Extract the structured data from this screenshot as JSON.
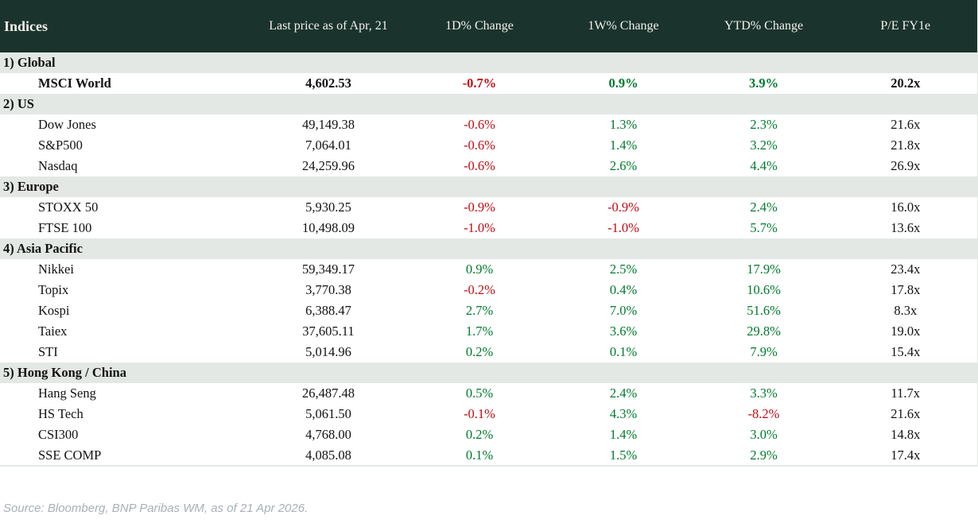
{
  "colors": {
    "header_bg": "#1a332d",
    "header_text": "#f4f1e9",
    "section_bg": "#e3e8e4",
    "positive": "#007a2e",
    "negative": "#c00c12",
    "text": "#121212",
    "source_text": "#a7b1b4"
  },
  "table": {
    "columns": [
      "Indices",
      "Last price as of Apr, 21",
      "1D% Change",
      "1W% Change",
      "YTD% Change",
      "P/E FY1e"
    ],
    "sections": [
      {
        "label": "1) Global",
        "rows": [
          {
            "name": "MSCI World",
            "price": "4,602.53",
            "d1": "-0.7%",
            "w1": "0.9%",
            "ytd": "3.9%",
            "pe": "20.2x",
            "bold": true
          }
        ]
      },
      {
        "label": "2) US",
        "rows": [
          {
            "name": "Dow Jones",
            "price": "49,149.38",
            "d1": "-0.6%",
            "w1": "1.3%",
            "ytd": "2.3%",
            "pe": "21.6x",
            "bold": false
          },
          {
            "name": "S&P500",
            "price": "7,064.01",
            "d1": "-0.6%",
            "w1": "1.4%",
            "ytd": "3.2%",
            "pe": "21.8x",
            "bold": false
          },
          {
            "name": "Nasdaq",
            "price": "24,259.96",
            "d1": "-0.6%",
            "w1": "2.6%",
            "ytd": "4.4%",
            "pe": "26.9x",
            "bold": false
          }
        ]
      },
      {
        "label": "3) Europe",
        "rows": [
          {
            "name": "STOXX 50",
            "price": "5,930.25",
            "d1": "-0.9%",
            "w1": "-0.9%",
            "ytd": "2.4%",
            "pe": "16.0x",
            "bold": false
          },
          {
            "name": "FTSE 100",
            "price": "10,498.09",
            "d1": "-1.0%",
            "w1": "-1.0%",
            "ytd": "5.7%",
            "pe": "13.6x",
            "bold": false
          }
        ]
      },
      {
        "label": "4) Asia Pacific",
        "rows": [
          {
            "name": "Nikkei",
            "price": "59,349.17",
            "d1": "0.9%",
            "w1": "2.5%",
            "ytd": "17.9%",
            "pe": "23.4x",
            "bold": false
          },
          {
            "name": "Topix",
            "price": "3,770.38",
            "d1": "-0.2%",
            "w1": "0.4%",
            "ytd": "10.6%",
            "pe": "17.8x",
            "bold": false
          },
          {
            "name": "Kospi",
            "price": "6,388.47",
            "d1": "2.7%",
            "w1": "7.0%",
            "ytd": "51.6%",
            "pe": "8.3x",
            "bold": false
          },
          {
            "name": "Taiex",
            "price": "37,605.11",
            "d1": "1.7%",
            "w1": "3.6%",
            "ytd": "29.8%",
            "pe": "19.0x",
            "bold": false
          },
          {
            "name": "STI",
            "price": "5,014.96",
            "d1": "0.2%",
            "w1": "0.1%",
            "ytd": "7.9%",
            "pe": "15.4x",
            "bold": false
          }
        ]
      },
      {
        "label": "5) Hong Kong / China",
        "rows": [
          {
            "name": "Hang Seng",
            "price": "26,487.48",
            "d1": "0.5%",
            "w1": "2.4%",
            "ytd": "3.3%",
            "pe": "11.7x",
            "bold": false
          },
          {
            "name": "HS Tech",
            "price": "5,061.50",
            "d1": "-0.1%",
            "w1": "4.3%",
            "ytd": "-8.2%",
            "pe": "21.6x",
            "bold": false
          },
          {
            "name": "CSI300",
            "price": "4,768.00",
            "d1": "0.2%",
            "w1": "1.4%",
            "ytd": "3.0%",
            "pe": "14.8x",
            "bold": false
          },
          {
            "name": "SSE COMP",
            "price": "4,085.08",
            "d1": "0.1%",
            "w1": "1.5%",
            "ytd": "2.9%",
            "pe": "17.4x",
            "bold": false
          }
        ]
      }
    ]
  },
  "source": "Source: Bloomberg, BNP Paribas WM, as of 21 Apr 2026.",
  "chart_data": {
    "type": "table",
    "title": "Indices",
    "columns": [
      "Indices",
      "Last price as of Apr, 21",
      "1D% Change",
      "1W% Change",
      "YTD% Change",
      "P/E FY1e"
    ],
    "rows": [
      [
        "1) Global",
        "",
        "",
        "",
        "",
        ""
      ],
      [
        "MSCI World",
        "4,602.53",
        "-0.7%",
        "0.9%",
        "3.9%",
        "20.2x"
      ],
      [
        "2) US",
        "",
        "",
        "",
        "",
        ""
      ],
      [
        "Dow Jones",
        "49,149.38",
        "-0.6%",
        "1.3%",
        "2.3%",
        "21.6x"
      ],
      [
        "S&P500",
        "7,064.01",
        "-0.6%",
        "1.4%",
        "3.2%",
        "21.8x"
      ],
      [
        "Nasdaq",
        "24,259.96",
        "-0.6%",
        "2.6%",
        "4.4%",
        "26.9x"
      ],
      [
        "3) Europe",
        "",
        "",
        "",
        "",
        ""
      ],
      [
        "STOXX 50",
        "5,930.25",
        "-0.9%",
        "-0.9%",
        "2.4%",
        "16.0x"
      ],
      [
        "FTSE 100",
        "10,498.09",
        "-1.0%",
        "-1.0%",
        "5.7%",
        "13.6x"
      ],
      [
        "4) Asia Pacific",
        "",
        "",
        "",
        "",
        ""
      ],
      [
        "Nikkei",
        "59,349.17",
        "0.9%",
        "2.5%",
        "17.9%",
        "23.4x"
      ],
      [
        "Topix",
        "3,770.38",
        "-0.2%",
        "0.4%",
        "10.6%",
        "17.8x"
      ],
      [
        "Kospi",
        "6,388.47",
        "2.7%",
        "7.0%",
        "51.6%",
        "8.3x"
      ],
      [
        "Taiex",
        "37,605.11",
        "1.7%",
        "3.6%",
        "29.8%",
        "19.0x"
      ],
      [
        "STI",
        "5,014.96",
        "0.2%",
        "0.1%",
        "7.9%",
        "15.4x"
      ],
      [
        "5) Hong Kong / China",
        "",
        "",
        "",
        "",
        ""
      ],
      [
        "Hang Seng",
        "26,487.48",
        "0.5%",
        "2.4%",
        "3.3%",
        "11.7x"
      ],
      [
        "HS Tech",
        "5,061.50",
        "-0.1%",
        "4.3%",
        "-8.2%",
        "21.6x"
      ],
      [
        "CSI300",
        "4,768.00",
        "0.2%",
        "1.4%",
        "3.0%",
        "14.8x"
      ],
      [
        "SSE COMP",
        "4,085.08",
        "0.1%",
        "1.5%",
        "2.9%",
        "17.4x"
      ]
    ],
    "notes": "Negative % values rendered red, positive % values rendered green. MSCI World row rendered bold.",
    "source": "Source: Bloomberg, BNP Paribas WM, as of 21 Apr 2026."
  }
}
